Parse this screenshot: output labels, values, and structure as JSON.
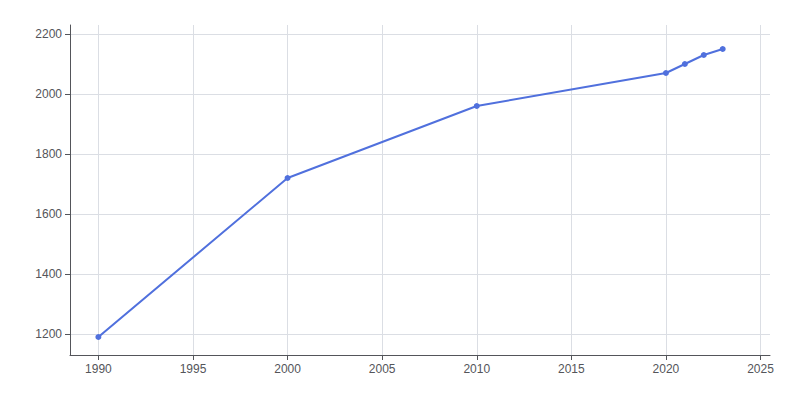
{
  "chart_data": {
    "type": "line",
    "x": [
      1990,
      2000,
      2010,
      2020,
      2021,
      2022,
      2023
    ],
    "values": [
      1190,
      1720,
      1960,
      2070,
      2100,
      2130,
      2150
    ],
    "xlim": [
      1988.5,
      2025.5
    ],
    "ylim": [
      1130,
      2230
    ],
    "xticks": [
      1990,
      1995,
      2000,
      2005,
      2010,
      2015,
      2020,
      2025
    ],
    "yticks": [
      1200,
      1400,
      1600,
      1800,
      2000,
      2200
    ],
    "grid": true,
    "marker": "circle"
  }
}
